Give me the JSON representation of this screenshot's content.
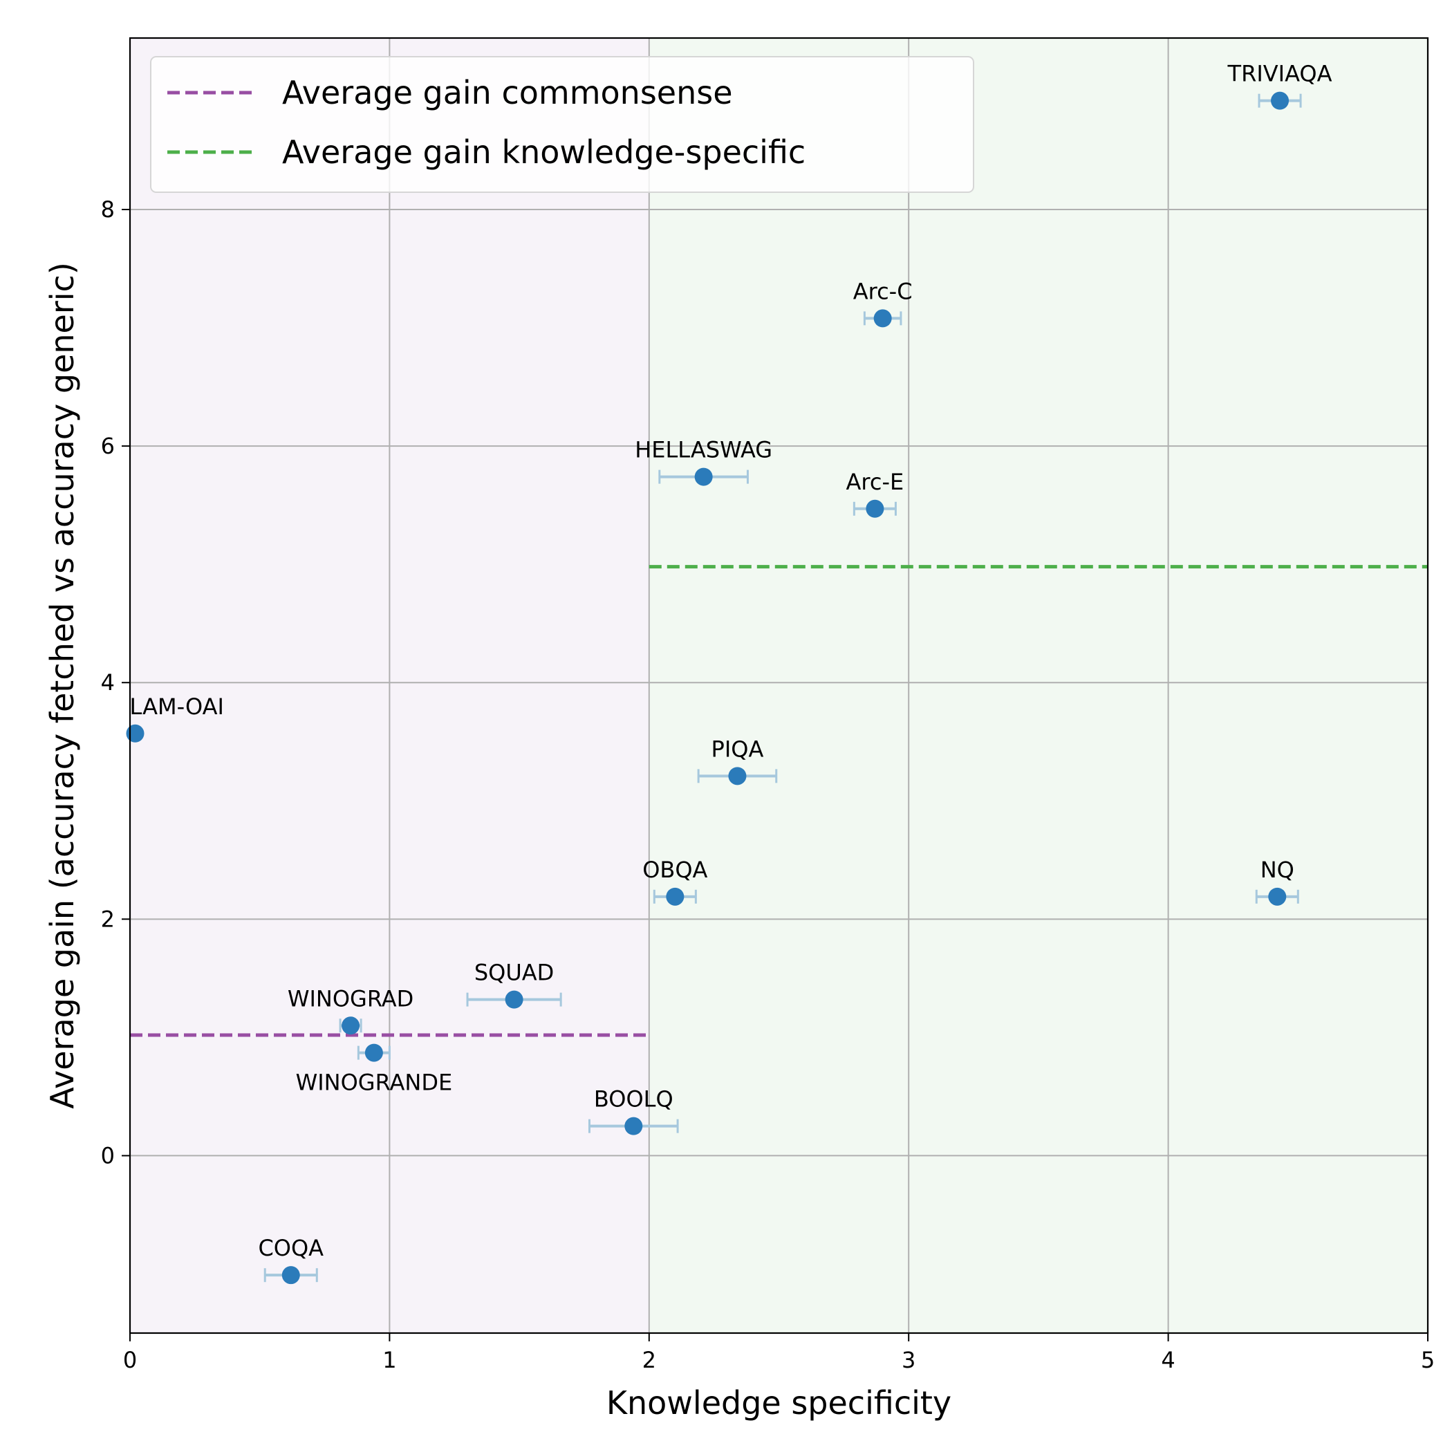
{
  "chart_data": {
    "type": "scatter",
    "title": "",
    "xlabel": "Knowledge specificity",
    "ylabel": "Average gain (accuracy fetched vs accuracy generic)",
    "xlim": [
      0,
      5
    ],
    "ylim": [
      -1.5,
      9.45
    ],
    "xticks": [
      0,
      1,
      2,
      3,
      4,
      5
    ],
    "yticks": [
      0,
      2,
      4,
      6,
      8
    ],
    "grid": true,
    "regions": [
      {
        "name": "commonsense",
        "x_range": [
          0,
          2
        ],
        "color": "#f7f3f9"
      },
      {
        "name": "knowledge-specific",
        "x_range": [
          2,
          5
        ],
        "color": "#f2f9f2"
      }
    ],
    "reference_lines": [
      {
        "label": "Average gain commonsense",
        "y": 1.02,
        "x_range": [
          0,
          2
        ],
        "color": "#984ea3"
      },
      {
        "label": "Average gain knowledge-specific",
        "y": 4.98,
        "x_range": [
          2,
          5
        ],
        "color": "#4daf4a"
      }
    ],
    "legend": {
      "position": "top-left"
    },
    "point_color": "#2b7bba",
    "errorbar_color": "#a6c8dd",
    "points": [
      {
        "name": "TRIVIAQA",
        "x": 4.43,
        "y": 8.92,
        "xerr": 0.08,
        "label_pos": "above"
      },
      {
        "name": "Arc-C",
        "x": 2.9,
        "y": 7.08,
        "xerr": 0.07,
        "label_pos": "above"
      },
      {
        "name": "HELLASWAG",
        "x": 2.21,
        "y": 5.74,
        "xerr": 0.17,
        "label_pos": "above"
      },
      {
        "name": "Arc-E",
        "x": 2.87,
        "y": 5.47,
        "xerr": 0.08,
        "label_pos": "above"
      },
      {
        "name": "LAM-OAI",
        "x": 0.02,
        "y": 3.57,
        "xerr": 0,
        "label_pos": "above-right"
      },
      {
        "name": "PIQA",
        "x": 2.34,
        "y": 3.21,
        "xerr": 0.15,
        "label_pos": "above"
      },
      {
        "name": "OBQA",
        "x": 2.1,
        "y": 2.19,
        "xerr": 0.08,
        "label_pos": "above"
      },
      {
        "name": "NQ",
        "x": 4.42,
        "y": 2.19,
        "xerr": 0.08,
        "label_pos": "above"
      },
      {
        "name": "SQUAD",
        "x": 1.48,
        "y": 1.32,
        "xerr": 0.18,
        "label_pos": "above"
      },
      {
        "name": "WINOGRAD",
        "x": 0.85,
        "y": 1.1,
        "xerr": 0.04,
        "label_pos": "above"
      },
      {
        "name": "WINOGRANDE",
        "x": 0.94,
        "y": 0.87,
        "xerr": 0.06,
        "label_pos": "below"
      },
      {
        "name": "BOOLQ",
        "x": 1.94,
        "y": 0.25,
        "xerr": 0.17,
        "label_pos": "above"
      },
      {
        "name": "COQA",
        "x": 0.62,
        "y": -1.01,
        "xerr": 0.1,
        "label_pos": "above"
      }
    ]
  }
}
